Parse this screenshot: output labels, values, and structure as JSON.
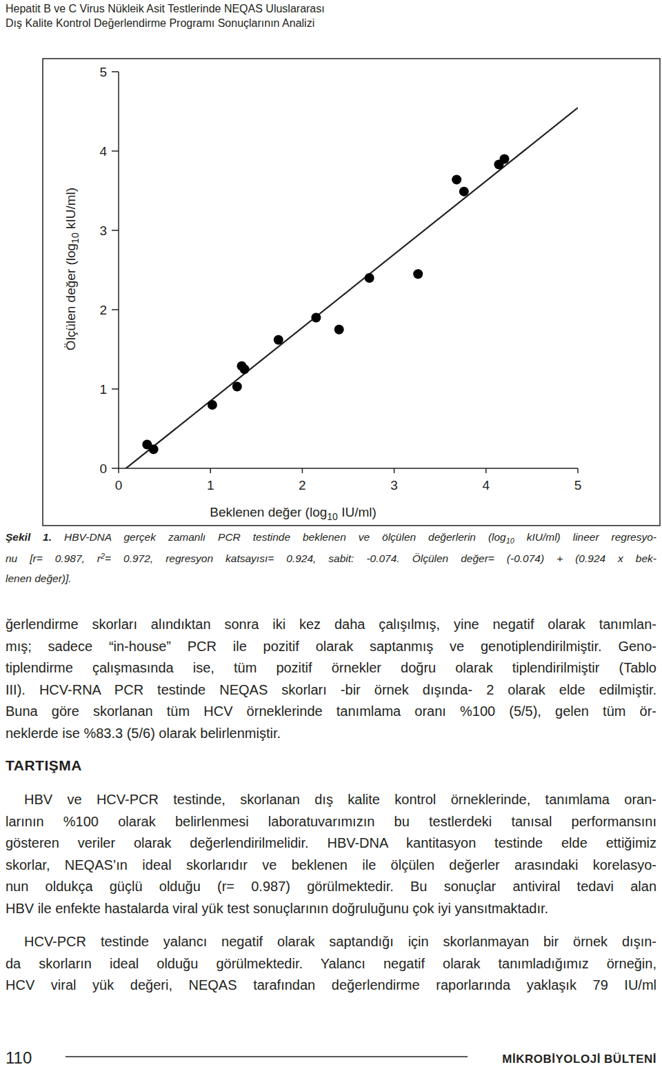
{
  "header": {
    "lines": [
      "Hepatit B ve C Virus Nükleik Asit Testlerinde NEQAS Uluslararası",
      "Dış Kalite Kontrol Değerlendirme Programı Sonuçlarının Analizi"
    ]
  },
  "chart_data": {
    "type": "scatter",
    "xlabel": [
      {
        "text": "Beklenen değer (log"
      },
      {
        "text": "10",
        "style": "sub"
      },
      {
        "text": " IU/ml)"
      }
    ],
    "ylabel": [
      {
        "text": "Ölçülen değer (log"
      },
      {
        "text": "10",
        "style": "sub"
      },
      {
        "text": " kIU/ml)"
      }
    ],
    "x": [
      0.31,
      0.38,
      1.02,
      1.29,
      1.34,
      1.37,
      1.74,
      2.15,
      2.4,
      2.73,
      3.26,
      3.68,
      3.76,
      4.14,
      4.2
    ],
    "values": [
      0.3,
      0.24,
      0.8,
      1.03,
      1.29,
      1.25,
      1.62,
      1.9,
      1.75,
      2.4,
      2.45,
      3.64,
      3.49,
      3.83,
      3.9
    ],
    "fit": {
      "slope": 0.924,
      "intercept": -0.074
    },
    "xlim": [
      0,
      5
    ],
    "ylim": [
      0,
      5
    ],
    "xticks": [
      0,
      1,
      2,
      3,
      4,
      5
    ],
    "yticks": [
      0,
      1,
      2,
      3,
      4,
      5
    ],
    "marker": "circle",
    "color": "#000000",
    "grid": false
  },
  "caption": {
    "lines": [
      [
        {
          "text": "Şekil 1.",
          "style": "bold"
        },
        {
          "text": " HBV-DNA gerçek zamanlı PCR testinde beklenen ve ölçülen değerlerin (log"
        },
        {
          "text": "10",
          "style": "sub"
        },
        {
          "text": " kIU/ml) lineer regresyo-"
        }
      ],
      [
        {
          "text": "nu [r= 0.987, r"
        },
        {
          "text": "2",
          "style": "sup"
        },
        {
          "text": "= 0.972, regresyon katsayısı= 0.924, sabit: -0.074. Ölçülen değer= (-0.074) + (0.924 x bek-"
        }
      ],
      [
        {
          "text": "lenen değer)]."
        }
      ]
    ]
  },
  "sections": [
    {
      "paragraphs": [
        [
          "ğerlendirme skorları alındıktan sonra iki kez daha çalışılmış, yine negatif olarak tanımlan-",
          "mış; sadece “in-house” PCR ile pozitif olarak saptanmış ve genotiplendirilmiştir. Geno-",
          "tiplendirme çalışmasında ise, tüm pozitif örnekler doğru olarak tiplendirilmiştir (Tablo",
          "III). HCV-RNA PCR testinde NEQAS skorları -bir örnek dışında- 2 olarak elde edilmiştir.",
          "Buna göre skorlanan tüm HCV örneklerinde tanımlama oranı %100 (5/5), gelen tüm ör-",
          "neklerde ise %83.3 (5/6) olarak belirlenmiştir."
        ]
      ]
    },
    {
      "heading": "TARTIŞMA",
      "paragraphs": [
        [
          "HBV ve HCV-PCR testinde, skorlanan dış kalite kontrol örneklerinde, tanımlama oran-",
          "larının %100 olarak belirlenmesi laboratuvarımızın bu testlerdeki tanısal performansını",
          "gösteren veriler olarak değerlendirilmelidir. HBV-DNA kantitasyon testinde elde ettiğimiz",
          "skorlar, NEQAS’ın ideal skorlarıdır ve beklenen ile ölçülen değerler arasındaki korelasyo-",
          "nun oldukça güçlü olduğu (r= 0.987) görülmektedir. Bu sonuçlar antiviral tedavi alan",
          "HBV ile enfekte hastalarda viral yük test sonuçlarının doğruluğunu çok iyi yansıtmaktadır."
        ],
        [
          "HCV-PCR testinde yalancı negatif olarak saptandığı için skorlanmayan bir örnek dışın-",
          "da skorların ideal olduğu görülmektedir. Yalancı negatif olarak tanımladığımız örneğin,",
          "HCV viral yük değeri, NEQAS tarafından değerlendirme raporlarında yaklaşık 79 IU/ml"
        ]
      ]
    }
  ],
  "footer": {
    "page": "110",
    "journal": "MİKROBİYOLOJİ BÜLTENİ"
  }
}
